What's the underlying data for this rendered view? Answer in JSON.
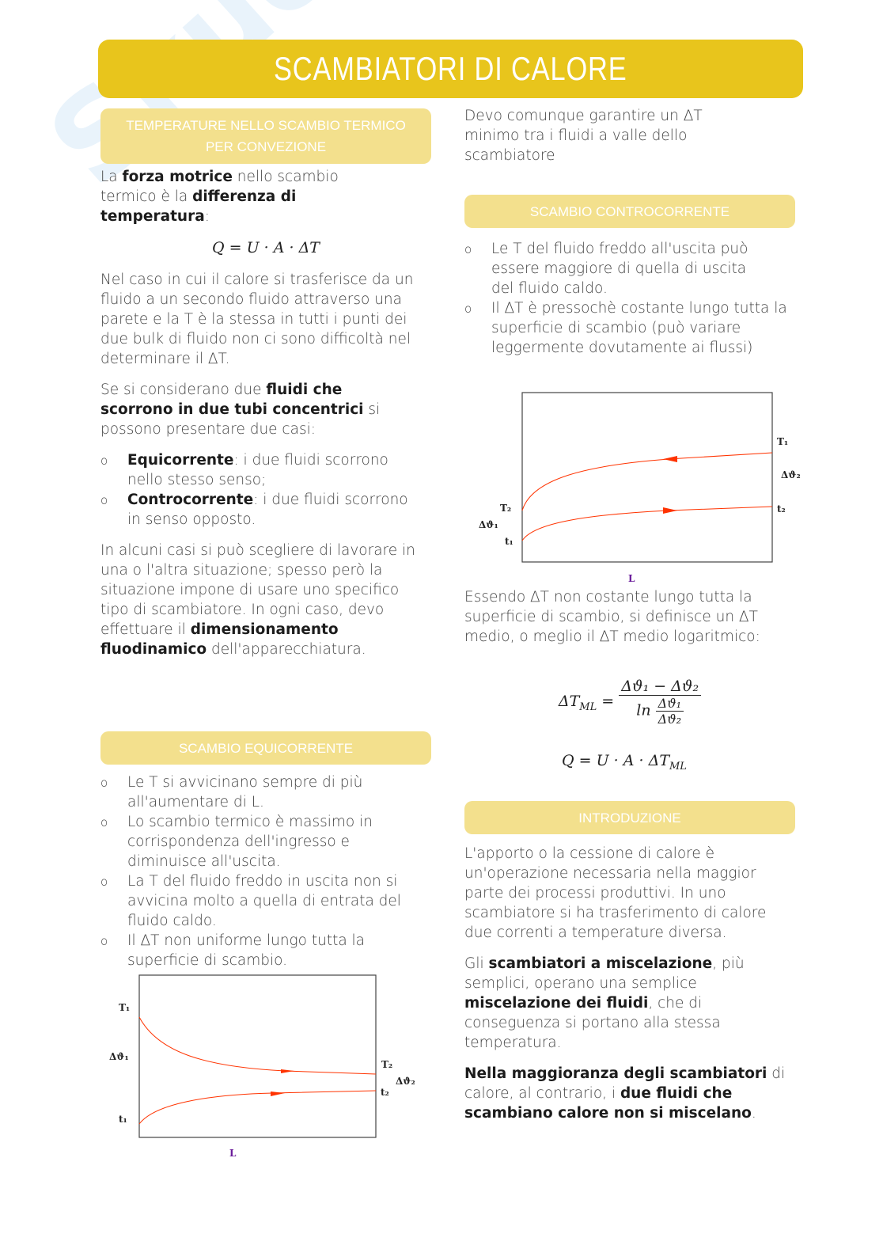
{
  "watermark": "Skuola.net",
  "title": "SCAMBIATORI DI CALORE",
  "colors": {
    "accent": "#e8c51c",
    "section": "#f3e08d",
    "curve": "#ff3300",
    "axis_label": "#6a1b9a"
  },
  "left": {
    "section1_title": "TEMPERATURE NELLO SCAMBIO TERMICO PER CONVEZIONE",
    "p1": [
      {
        "t": "La "
      },
      {
        "t": "forza motrice",
        "b": true
      },
      {
        "t": " nello scambio termico è la "
      },
      {
        "t": "differenza di temperatura",
        "b": true
      },
      {
        "t": ":"
      }
    ],
    "formula1": "Q = U · A · ΔT",
    "p2": [
      {
        "t": "Nel caso in cui il calore si trasferisce da un fluido a un secondo fluido attraverso una parete e la T è la stessa in tutti i punti dei due bulk di fluido non ci sono difficoltà nel determinare il ΔT."
      }
    ],
    "p3": [
      {
        "t": "Se si considerano due "
      },
      {
        "t": "fluidi che scorrono in due tubi concentrici",
        "b": true
      },
      {
        "t": " si possono presentare due casi:"
      }
    ],
    "cases": [
      [
        {
          "t": "Equicorrente",
          "b": true
        },
        {
          "t": ": i due fluidi scorrono nello stesso senso;"
        }
      ],
      [
        {
          "t": "Controcorrente",
          "b": true
        },
        {
          "t": ": i due fluidi scorrono in senso opposto."
        }
      ]
    ],
    "p4": [
      {
        "t": "In alcuni casi si può scegliere di lavorare in una o l'altra situazione; spesso però la situazione impone di usare uno specifico tipo di scambiatore. In ogni caso, devo effettuare il "
      },
      {
        "t": "dimensionamento fluodinamico",
        "b": true
      },
      {
        "t": " dell'apparecchiatura."
      }
    ],
    "section2_title": "SCAMBIO EQUICORRENTE",
    "equi_items": [
      [
        {
          "t": "Le T si avvicinano sempre di più all'aumentare di L."
        }
      ],
      [
        {
          "t": "Lo scambio termico è massimo in corrispondenza dell'ingresso e diminuisce all'uscita."
        }
      ],
      [
        {
          "t": "La T del fluido freddo in uscita non si avvicina molto a quella di entrata del fluido caldo."
        }
      ],
      [
        {
          "t": "Il ΔT non uniforme lungo tutta la superficie di scambio."
        }
      ]
    ],
    "diagram": {
      "T1": "T₁",
      "dtheta1": "Δϑ₁",
      "t1": "t₁",
      "T2": "T₂",
      "dtheta2": "Δϑ₂",
      "t2": "t₂",
      "L": "L"
    }
  },
  "right": {
    "p0": [
      {
        "t": "Devo comunque garantire un ΔT minimo tra i fluidi a valle dello scambiatore"
      }
    ],
    "section3_title": "SCAMBIO CONTROCORRENTE",
    "counter_items": [
      [
        {
          "t": "Le T del fluido freddo all'uscita può essere maggiore di quella di uscita del fluido caldo."
        }
      ],
      [
        {
          "t": "Il ΔT è pressochè costante lungo tutta la superficie di scambio (può variare leggermente dovutamente ai flussi)"
        }
      ]
    ],
    "diagram": {
      "T1": "T₁",
      "dtheta2": "Δϑ₂",
      "t2": "t₂",
      "T2": "T₂",
      "dtheta1": "Δϑ₁",
      "t1": "t₁",
      "L": "L"
    },
    "p1": [
      {
        "t": "Essendo ΔT non costante lungo tutta la superficie di scambio, si definisce un ΔT medio, o meglio il ΔT medio logaritmico:"
      }
    ],
    "lmtd": {
      "lhs": "ΔT",
      "lhs_sub": "ML",
      "eq": "=",
      "num": "Δϑ₁ − Δϑ₂",
      "ln": "ln",
      "ln_num": "Δϑ₁",
      "ln_den": "Δϑ₂"
    },
    "formula2": {
      "main": "Q = U · A · ΔT",
      "sub": "ML"
    },
    "section4_title": "INTRODUZIONE",
    "p2": [
      {
        "t": "L'apporto o la cessione di calore è un'operazione necessaria nella maggior parte dei processi produttivi. In uno scambiatore si ha trasferimento di calore due correnti a temperature diversa."
      }
    ],
    "p3": [
      {
        "t": "Gli "
      },
      {
        "t": "scambiatori a miscelazione",
        "b": true
      },
      {
        "t": ", più semplici, operano una semplice "
      },
      {
        "t": "miscelazione dei fluidi",
        "b": true
      },
      {
        "t": ", che di conseguenza si portano alla stessa temperatura."
      }
    ],
    "p4": [
      {
        "t": "Nella maggioranza degli scambiatori",
        "b": true
      },
      {
        "t": " di calore, al contrario, i "
      },
      {
        "t": "due fluidi che scambiano calore non si miscelano",
        "b": true
      },
      {
        "t": "."
      }
    ]
  }
}
